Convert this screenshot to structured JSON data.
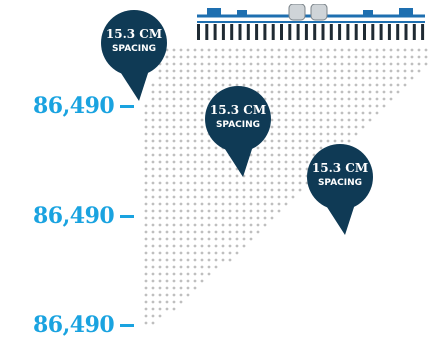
{
  "rows": [
    {
      "value": "86,490"
    },
    {
      "value": "86,490"
    },
    {
      "value": "86,490"
    }
  ],
  "pins": [
    {
      "big": "15.3 CM",
      "small": "SPACING"
    },
    {
      "big": "15.3 CM",
      "small": "SPACING"
    },
    {
      "big": "15.3 CM",
      "small": "SPACING"
    }
  ],
  "colors": {
    "accent": "#1aa3e0",
    "pin": "#0f3a55",
    "dots": "#bfbfbf",
    "planter_frame": "#1e6fb0"
  },
  "icons": {
    "pin": "map-pin-icon",
    "planter": "planter-icon"
  }
}
